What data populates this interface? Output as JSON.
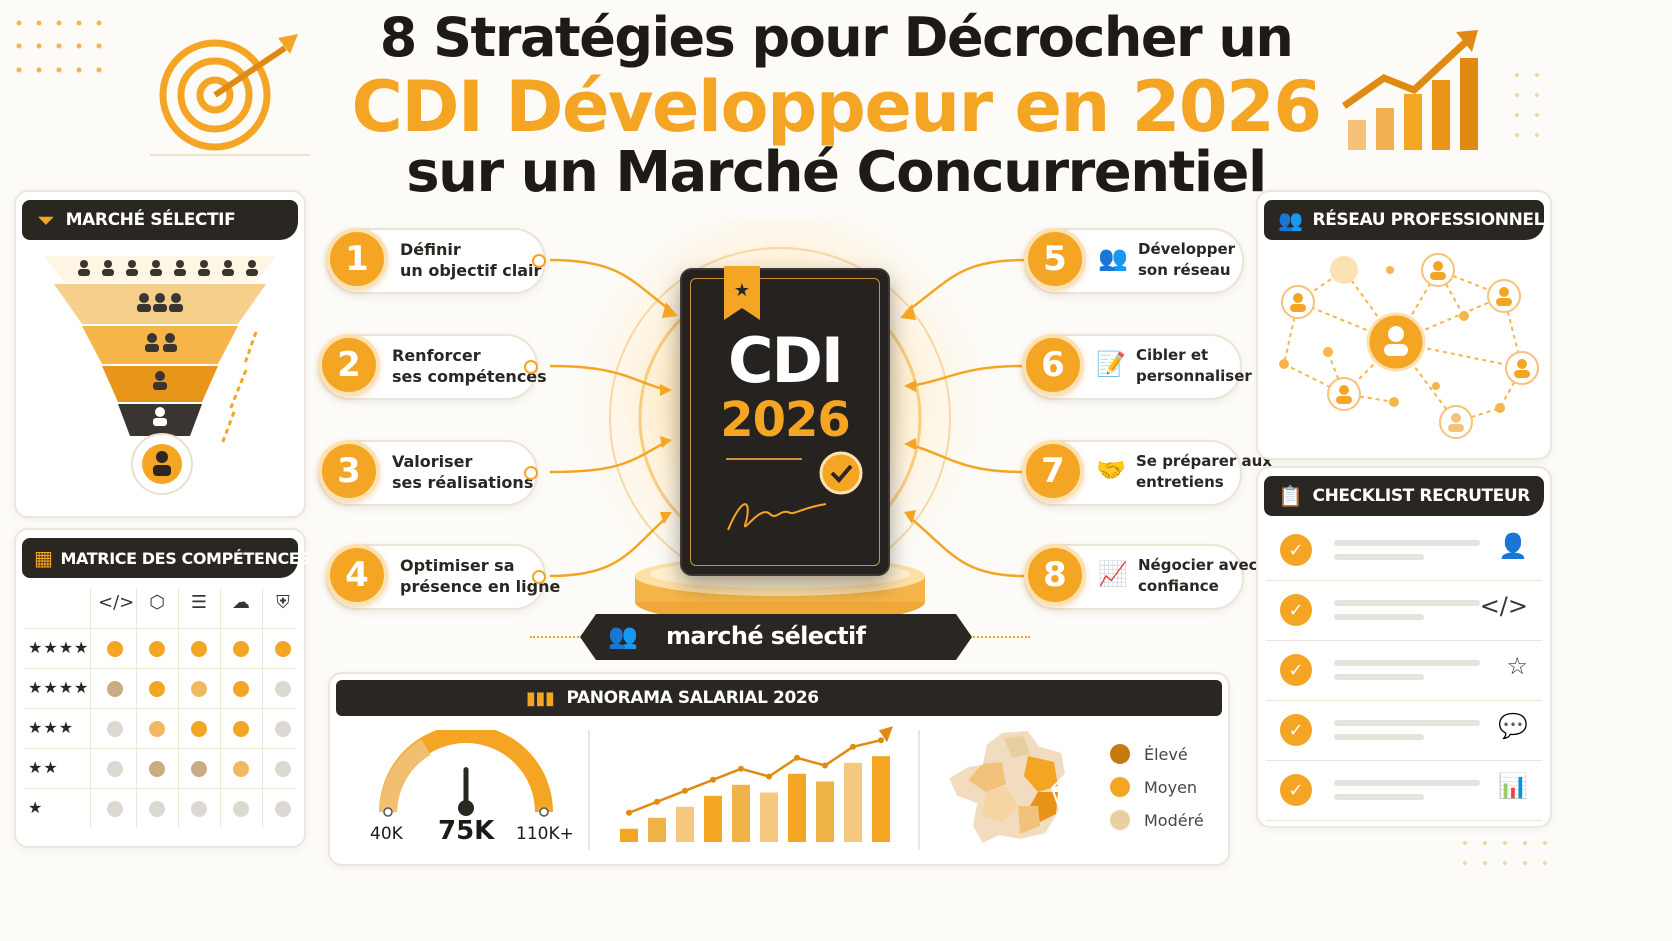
{
  "title": {
    "line1": "8 Stratégies pour Décrocher un",
    "line2": "CDI Développeur en 2026",
    "line3": "sur un Marché Concurrentiel"
  },
  "colors": {
    "accent": "#f5a524",
    "accent_dark": "#c77a0e",
    "dark": "#2a2622",
    "light_tan": "#e8cfa0"
  },
  "left_top": {
    "title": "MARCHÉ SÉLECTIF",
    "icon": "funnel-icon"
  },
  "matrix": {
    "title": "MATRICE DES COMPÉTENCES",
    "icon": "grid-icon",
    "columns": [
      "code-icon",
      "cube-icon",
      "database-icon",
      "cloud-icon",
      "shield-icon"
    ],
    "column_glyphs": [
      "</>",
      "⬡",
      "☰",
      "☁",
      "⛨"
    ],
    "rows": [
      {
        "label": "★★★★",
        "levels": [
          3,
          3,
          3,
          3,
          3
        ]
      },
      {
        "label": "★★★★",
        "levels": [
          1,
          3,
          2,
          3,
          0
        ]
      },
      {
        "label": "★★★",
        "levels": [
          0,
          2,
          3,
          3,
          0
        ]
      },
      {
        "label": "★★",
        "levels": [
          0,
          1,
          1,
          2,
          0
        ]
      },
      {
        "label": "★",
        "levels": [
          0,
          0,
          0,
          0,
          0
        ]
      }
    ],
    "level_colors": [
      "#dcd8d2",
      "#c9ab84",
      "#f0b860",
      "#f5a524"
    ]
  },
  "strategies": [
    {
      "num": "1",
      "line1": "Définir",
      "line2": "un objectif clair",
      "icon": ""
    },
    {
      "num": "2",
      "line1": "Renforcer",
      "line2": "ses compétences",
      "icon": ""
    },
    {
      "num": "3",
      "line1": "Valoriser",
      "line2": "ses réalisations",
      "icon": ""
    },
    {
      "num": "4",
      "line1": "Optimiser sa",
      "line2": "présence en ligne",
      "icon": ""
    },
    {
      "num": "5",
      "line1": "Développer",
      "line2": "son réseau",
      "icon": "network-people-icon"
    },
    {
      "num": "6",
      "line1": "Cibler et",
      "line2": "personnaliser",
      "icon": "document-edit-icon"
    },
    {
      "num": "7",
      "line1": "Se préparer aux",
      "line2": "entretiens",
      "icon": "interview-icon"
    },
    {
      "num": "8",
      "line1": "Négocier avec",
      "line2": "confiance",
      "icon": "growth-chart-icon"
    }
  ],
  "center": {
    "line1": "CDI",
    "line2": "2026",
    "badge": "marché sélectif",
    "badge_icon": "people-group-icon",
    "signature": "Jn"
  },
  "salary": {
    "title": "PANORAMA SALARIAL 2026",
    "icon": "bar-chart-icon",
    "gauge_min": "40K",
    "gauge_value": "75K",
    "gauge_max": "110K+",
    "gauge_level": 0.5,
    "bar_trend": [
      0.12,
      0.22,
      0.32,
      0.42,
      0.52,
      0.45,
      0.62,
      0.55,
      0.72,
      0.78
    ]
  },
  "map_legend": [
    {
      "label": "Élevé",
      "color": "#c77a0e"
    },
    {
      "label": "Moyen",
      "color": "#f5a524"
    },
    {
      "label": "Modéré",
      "color": "#e8cfa0"
    }
  ],
  "network": {
    "title": "RÉSEAU PROFESSIONNEL",
    "icon": "people-icon"
  },
  "checklist": {
    "title": "CHECKLIST RECRUTEUR",
    "icon": "clipboard-icon",
    "items": [
      {
        "icon": "person-icon",
        "glyph": "👤"
      },
      {
        "icon": "code-icon",
        "glyph": "</>"
      },
      {
        "icon": "star-icon",
        "glyph": "☆"
      },
      {
        "icon": "chat-icon",
        "glyph": "💬"
      },
      {
        "icon": "bar-chart-icon",
        "glyph": "📊"
      }
    ]
  }
}
